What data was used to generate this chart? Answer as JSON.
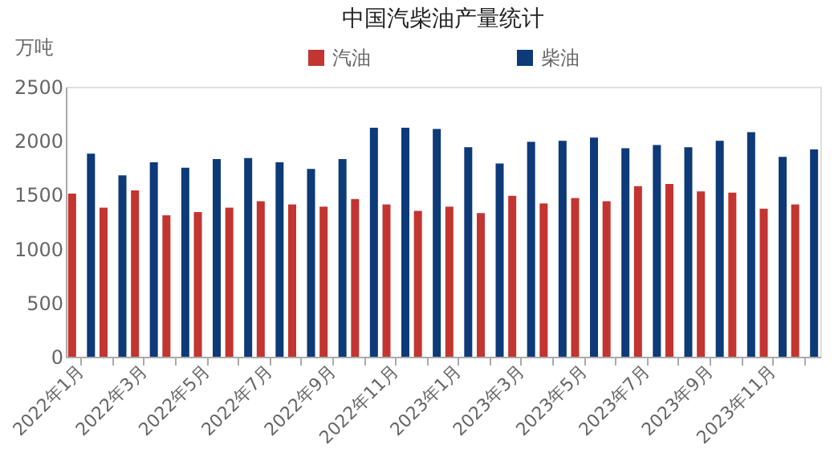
{
  "chart_data": {
    "type": "bar",
    "title": "中国汽柴油产量统计",
    "ylabel": "万吨",
    "categories": [
      "2022年1月",
      null,
      "2022年3月",
      null,
      "2022年5月",
      null,
      "2022年7月",
      null,
      "2022年9月",
      null,
      "2022年11月",
      null,
      "2023年1月",
      null,
      "2023年3月",
      null,
      "2023年5月",
      null,
      "2023年7月",
      null,
      "2023年9月",
      null,
      "2023年11月",
      null
    ],
    "series": [
      {
        "name": "汽油",
        "color": "#c23531",
        "values": [
          1510,
          1380,
          1540,
          1310,
          1340,
          1380,
          1440,
          1410,
          1390,
          1460,
          1410,
          1350,
          1390,
          1330,
          1490,
          1420,
          1470,
          1440,
          1580,
          1600,
          1530,
          1520,
          1370,
          1410
        ]
      },
      {
        "name": "柴油",
        "color": "#0d3a78",
        "values": [
          1880,
          1680,
          1800,
          1750,
          1830,
          1840,
          1800,
          1740,
          1830,
          2120,
          2120,
          2110,
          1940,
          1790,
          1990,
          2000,
          2030,
          1930,
          1960,
          1940,
          2000,
          2080,
          1850,
          1920
        ]
      }
    ],
    "ylim": [
      0,
      2500
    ],
    "yticks": [
      0,
      500,
      1000,
      1500,
      2000,
      2500
    ],
    "grid": false,
    "legend": "top"
  }
}
